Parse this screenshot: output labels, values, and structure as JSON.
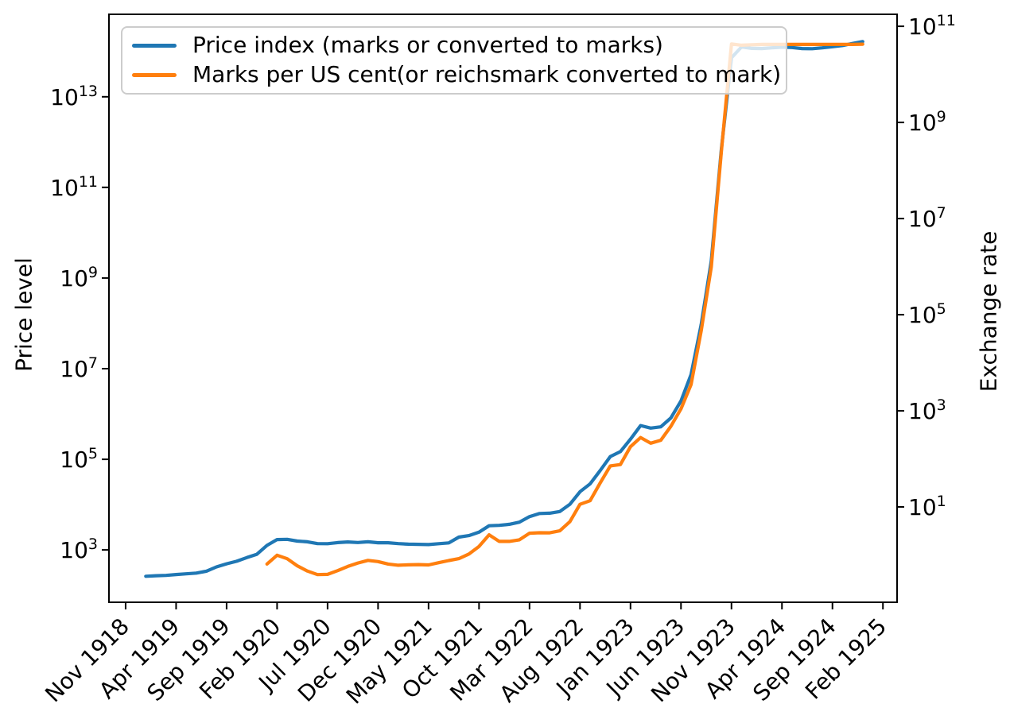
{
  "chart_data": {
    "type": "line",
    "title": "",
    "grid": false,
    "legend": {
      "location": "upper left"
    },
    "x_axis": {
      "epoch_label": "Nov 1918",
      "tick_labels": [
        "Nov 1918",
        "Apr 1919",
        "Sep 1919",
        "Feb 1920",
        "Jul 1920",
        "Dec 1920",
        "May 1921",
        "Oct 1921",
        "Mar 1922",
        "Aug 1922",
        "Jan 1923",
        "Jun 1923",
        "Nov 1923",
        "Apr 1924",
        "Sep 1924",
        "Feb 1925"
      ],
      "tick_month_offsets": [
        0,
        5,
        10,
        15,
        20,
        25,
        30,
        35,
        40,
        45,
        50,
        55,
        60,
        65,
        70,
        75
      ],
      "xlim_month_offsets": [
        -1.65,
        76.4
      ]
    },
    "left_axis": {
      "label": "Price level",
      "scale": "log",
      "tick_exponents": [
        3,
        5,
        7,
        9,
        11,
        13
      ],
      "ylim": [
        70,
        660000000000000
      ]
    },
    "right_axis": {
      "label": "Exchange rate",
      "scale": "log",
      "tick_exponents": [
        1,
        3,
        5,
        7,
        9,
        11
      ],
      "ylim": [
        0.104,
        178000000000
      ]
    },
    "series": [
      {
        "name": "Price index (marks or converted to marks)",
        "color": "#1f77b4",
        "axis": "left",
        "start": "1919-01",
        "frequency": "monthly",
        "values": [
          262,
          270,
          274,
          286,
          297,
          308,
          339,
          422,
          493,
          562,
          678,
          803,
          1260,
          1690,
          1710,
          1570,
          1510,
          1380,
          1370,
          1450,
          1500,
          1460,
          1510,
          1440,
          1440,
          1380,
          1340,
          1330,
          1310,
          1370,
          1430,
          1920,
          2070,
          2460,
          3420,
          3490,
          3670,
          4100,
          5430,
          6360,
          6460,
          7030,
          10160,
          19200,
          28700,
          56600,
          115100,
          147480,
          278500,
          555700,
          488800,
          521200,
          817000,
          1938500,
          7478700,
          94404100,
          2394889300,
          709480000000,
          72570000000000,
          126160000000000,
          117000000000000,
          116000000000000,
          120000000000000,
          124000000000000,
          122000000000000,
          116000000000000,
          115000000000000,
          120000000000000,
          127000000000000,
          135000000000000,
          150000000000000,
          165000000000000
        ]
      },
      {
        "name": "Marks per US cent(or reichsmark converted to mark)",
        "color": "#ff7f0e",
        "axis": "right",
        "start": "1920-01",
        "frequency": "monthly",
        "values": [
          0.648,
          0.991,
          0.839,
          0.596,
          0.465,
          0.391,
          0.395,
          0.474,
          0.58,
          0.682,
          0.772,
          0.73,
          0.649,
          0.613,
          0.624,
          0.633,
          0.622,
          0.693,
          0.767,
          0.84,
          1.049,
          1.507,
          2.629,
          1.918,
          1.919,
          2.075,
          2.843,
          2.911,
          2.901,
          3.18,
          4.93,
          11.35,
          13.49,
          31.66,
          71.55,
          76.25,
          179.7,
          278,
          212,
          244,
          478,
          1100,
          3534,
          46205,
          988600,
          252602000,
          43000000000,
          40500000000,
          41500000000,
          42000000000,
          42000000000,
          42000000000,
          42000000000,
          42000000000,
          42000000000,
          42000000000,
          42000000000,
          42000000000,
          42000000000,
          42500000000
        ]
      }
    ]
  }
}
